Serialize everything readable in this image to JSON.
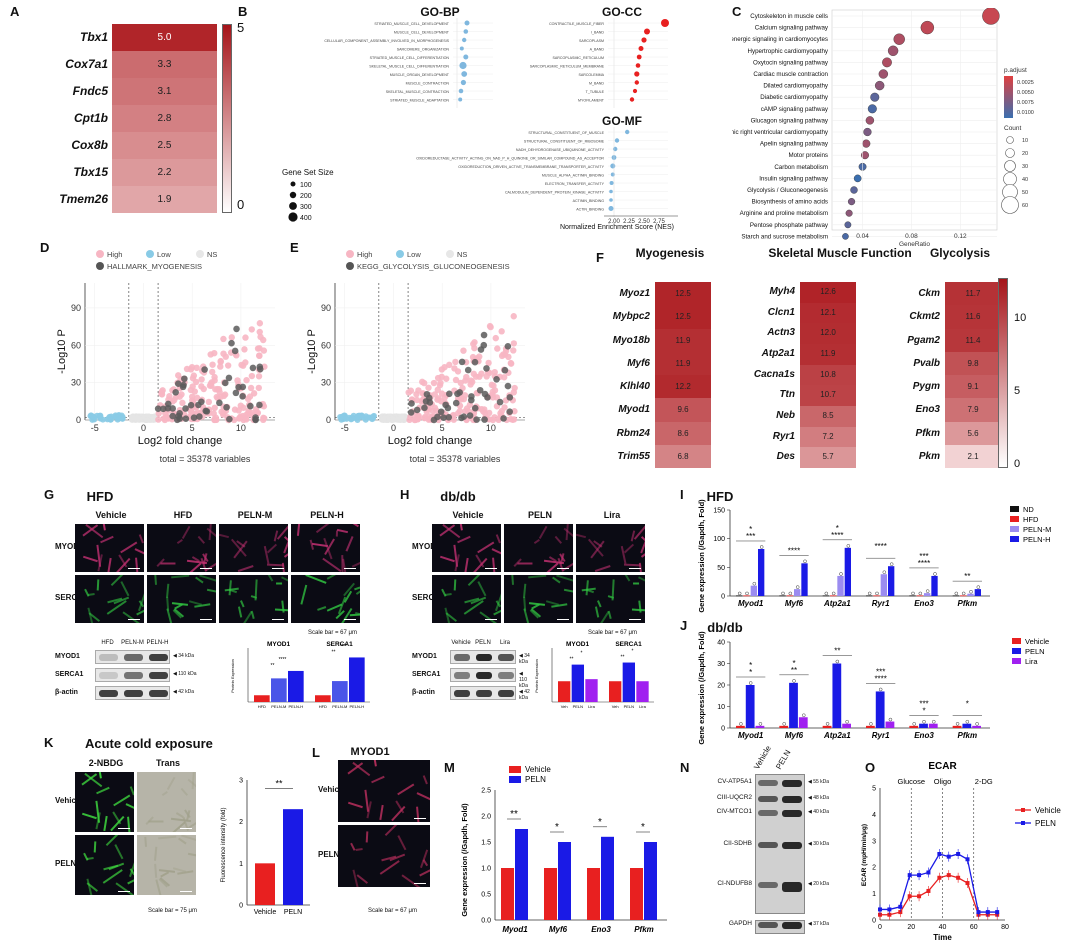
{
  "panels": [
    "A",
    "B",
    "C",
    "D",
    "E",
    "F",
    "G",
    "H",
    "I",
    "J",
    "K",
    "L",
    "M",
    "N",
    "O"
  ],
  "panelA": {
    "genes": [
      "Tbx1",
      "Cox7a1",
      "Fndc5",
      "Cpt1b",
      "Cox8b",
      "Tbx15",
      "Tmem26"
    ],
    "values": [
      5.0,
      3.3,
      3.1,
      2.8,
      2.5,
      2.2,
      1.9
    ],
    "scale_max": "5",
    "scale_min": "0"
  },
  "panelB": {
    "bp_title": "GO-BP",
    "cc_title": "GO-CC",
    "mf_title": "GO-MF",
    "bp_terms": [
      "STRIATED_MUSCLE_CELL_DEVELOPMENT",
      "MUSCLE_CELL_DEVELOPMENT",
      "CELLULAR_COMPONENT_ASSEMBLY_INVOLVED_IN_MORPHOGENESIS",
      "SARCOMERE_ORGANIZATION",
      "STRIATED_MUSCLE_CELL_DIFFERENTIATION",
      "SKELETAL_MUSCLE_CELL_DIFFERENTIATION",
      "MUSCLE_ORGAN_DEVELOPMENT",
      "MUSCLE_CONTRACTION",
      "SKELETAL_MUSCLE_CONTRACTION",
      "STRIATED_MUSCLE_ADAPTATION"
    ],
    "cc_terms": [
      "CONTRACTILE_MUSCLE_FIBER",
      "I_BAND",
      "SARCOPLASM",
      "A_BAND",
      "SARCOPLASMIC_RETICULUM",
      "SARCOPLASMIC_RETICULUM_MEMBRANE",
      "SARCOLEMMA",
      "M_BAND",
      "T_TUBULE",
      "MYOFILAMENT"
    ],
    "mf_terms": [
      "STRUCTURAL_CONSTITUENT_OF_MUSCLE",
      "STRUCTURAL_CONSTITUENT_OF_RIBOSOME",
      "NADH_DEHYDROGENASE_UBIQUINONE_ACTIVITY",
      "OXIDOREDUCTASE_ACTIVITY_ACTING_ON_NAD_P_H_QUINONE_OR_SIMILAR_COMPOUND_AS_ACCEPTOR",
      "OXIDOREDUCTION_DRIVEN_ACTIVE_TRANSMEMBRANE_TRANSPORTER_ACTIVITY",
      "MUSCLE_ALPHA_ACTININ_BINDING",
      "ELECTRON_TRANSFER_ACTIVITY",
      "CALMODULIN_DEPENDENT_PROTEIN_KINASE_ACTIVITY",
      "ACTININ_BINDING",
      "ACTIN_BINDING"
    ],
    "legend_title": "Gene Set Size",
    "legend_sizes": [
      "100",
      "200",
      "300",
      "400"
    ],
    "xlabel": "Normalized Enrichment Score (NES)",
    "xticks": [
      "2.00",
      "2.25",
      "2.50",
      "2.75"
    ]
  },
  "panelC": {
    "terms": [
      "Cytoskeleton in muscle cells",
      "Calcium signaling pathway",
      "Adrenergic signaling in cardiomyocytes",
      "Hypertrophic cardiomyopathy",
      "Oxytocin signaling pathway",
      "Cardiac muscle contraction",
      "Dilated cardiomyopathy",
      "Diabetic cardiomyopathy",
      "cAMP signaling pathway",
      "Glucagon signaling pathway",
      "Arrhythmogenic right ventricular cardiomyopathy",
      "Apelin signaling pathway",
      "Motor proteins",
      "Carbon metabolism",
      "Insulin signaling pathway",
      "Glycolysis / Gluconeogenesis",
      "Biosynthesis of amino acids",
      "Arginine and proline metabolism",
      "Pentose phosphate pathway",
      "Starch and sucrose metabolism"
    ],
    "ratios": [
      0.145,
      0.093,
      0.07,
      0.065,
      0.06,
      0.057,
      0.054,
      0.05,
      0.048,
      0.046,
      0.044,
      0.043,
      0.042,
      0.04,
      0.036,
      0.033,
      0.031,
      0.029,
      0.028,
      0.026
    ],
    "xlabel": "GeneRatio",
    "xticks": [
      "0.04",
      "0.08",
      "0.12"
    ],
    "padj_title": "p.adjust",
    "padj_ticks": [
      "0.0025",
      "0.0050",
      "0.0075",
      "0.0100"
    ],
    "count_title": "Count",
    "count_ticks": [
      "10",
      "20",
      "30",
      "40",
      "50",
      "60"
    ],
    "colors": {
      "low": "#e04040",
      "high": "#3a6fb0"
    }
  },
  "panelD": {
    "legend": [
      "High",
      "Low",
      "NS"
    ],
    "hallmark": "HALLMARK_MYOGENESIS",
    "xlabel": "Log2 fold change",
    "ylabel": "-Log10 P",
    "xticks": [
      "-5",
      "0",
      "5",
      "10"
    ],
    "yticks": [
      "0",
      "30",
      "60",
      "90"
    ],
    "total": "total = 35378 variables"
  },
  "panelE": {
    "legend": [
      "High",
      "Low",
      "NS"
    ],
    "kegg": "KEGG_GLYCOLYSIS_GLUCONEOGENESIS",
    "xlabel": "Log2 fold change",
    "ylabel": "-Log10 P",
    "xticks": [
      "-5",
      "0",
      "5",
      "10"
    ],
    "yticks": [
      "0",
      "30",
      "60",
      "90"
    ],
    "total": "total = 35378 variables"
  },
  "panelF": {
    "groups": [
      {
        "title": "Myogenesis",
        "genes": [
          "Myoz1",
          "Mybpc2",
          "Myo18b",
          "Myf6",
          "Klhl40",
          "Myod1",
          "Rbm24",
          "Trim55"
        ],
        "values": [
          12.5,
          12.5,
          11.9,
          11.9,
          12.2,
          9.6,
          8.6,
          6.8
        ]
      },
      {
        "title": "Skeletal Muscle Function",
        "genes": [
          "Myh4",
          "Clcn1",
          "Actn3",
          "Atp2a1",
          "Cacna1s",
          "Ttn",
          "Neb",
          "Ryr1",
          "Des"
        ],
        "values": [
          12.6,
          12.1,
          12.0,
          11.9,
          10.8,
          10.7,
          8.5,
          7.2,
          5.7
        ]
      },
      {
        "title": "Glycolysis",
        "genes": [
          "Ckm",
          "Ckmt2",
          "Pgam2",
          "Pvalb",
          "Pygm",
          "Eno3",
          "Pfkm",
          "Pkm"
        ],
        "values": [
          11.7,
          11.6,
          11.4,
          9.8,
          9.1,
          7.9,
          5.6,
          2.1
        ]
      }
    ],
    "scale_ticks": [
      "10",
      "5",
      "0"
    ]
  },
  "panelG": {
    "title": "HFD",
    "columns": [
      "Vehicle",
      "HFD",
      "PELN-M",
      "PELN-H"
    ],
    "rows": [
      "MYOD1",
      "SERCA1"
    ],
    "scale": "Scale bar = 67 μm",
    "wb_lanes": [
      "HFD",
      "PELN-M",
      "PELN-H"
    ],
    "wb_rows": [
      "MYOD1",
      "SERCA1",
      "β-actin"
    ],
    "wb_kda": [
      "34 kDa",
      "110 kDa",
      "42 kDa"
    ],
    "bar_titles": [
      "MYOD1",
      "SERCA1"
    ],
    "ylabel": "Protein Expression",
    "bar_x": [
      "HFD",
      "PELN-M",
      "PELN-H"
    ],
    "values": [
      [
        1.0,
        3.5,
        4.6
      ],
      [
        1.0,
        3.1,
        6.6
      ]
    ],
    "sig": [
      "**",
      "****",
      "**",
      "****"
    ]
  },
  "panelH": {
    "title": "db/db",
    "columns": [
      "Vehicle",
      "PELN",
      "Lira"
    ],
    "rows": [
      "MYOD1",
      "SERCA1"
    ],
    "scale": "Scale bar = 67 μm",
    "wb_lanes": [
      "Vehicle",
      "PELN",
      "Lira"
    ],
    "wb_rows": [
      "MYOD1",
      "SERCA1",
      "β-actin"
    ],
    "wb_kda": [
      "34 kDa",
      "110 kDa",
      "42 kDa"
    ],
    "bar_titles": [
      "MYOD1",
      "SERCA1"
    ],
    "ylabel": "Protein Expression",
    "bar_x": [
      "Veh",
      "PELN",
      "Lira"
    ],
    "values": [
      [
        1.0,
        1.8,
        1.1
      ],
      [
        1.0,
        1.9,
        1.0
      ]
    ],
    "sig": [
      "**",
      "*",
      "**",
      "*"
    ]
  },
  "panelI": {
    "title": "HFD",
    "legend": [
      "ND",
      "HFD",
      "PELN-M",
      "PELN-H"
    ],
    "colors": [
      "#111111",
      "#e82020",
      "#9b8cf0",
      "#1a1ae6"
    ],
    "genes": [
      "Myod1",
      "Myf6",
      "Atp2a1",
      "Ryr1",
      "Eno3",
      "Pfkm"
    ],
    "ylabel": "Gene expression (/Gapdh, Fold)",
    "yticks": [
      "0",
      "50",
      "100",
      "150"
    ],
    "values": [
      [
        1,
        1,
        18,
        82
      ],
      [
        1,
        1,
        12,
        57
      ],
      [
        1,
        1,
        35,
        84
      ],
      [
        1,
        1,
        38,
        52
      ],
      [
        1,
        1,
        5,
        35
      ],
      [
        1,
        1,
        4,
        12
      ]
    ],
    "sig": [
      "***",
      "*",
      "****",
      "*",
      "****",
      "****",
      "****",
      "***",
      "**"
    ]
  },
  "panelJ": {
    "title": "db/db",
    "legend": [
      "Vehicle",
      "PELN",
      "Lira"
    ],
    "colors": [
      "#e82020",
      "#1a1ae6",
      "#a020f0"
    ],
    "genes": [
      "Myod1",
      "Myf6",
      "Atp2a1",
      "Ryr1",
      "Eno3",
      "Pfkm"
    ],
    "ylabel": "Gene expression (/Gapdh, Fold)",
    "yticks": [
      "0",
      "10",
      "20",
      "30",
      "40"
    ],
    "values": [
      [
        1,
        20,
        1
      ],
      [
        1,
        21,
        5
      ],
      [
        1,
        30,
        2
      ],
      [
        1,
        17,
        3
      ],
      [
        1,
        2,
        2
      ],
      [
        1,
        2,
        1
      ]
    ],
    "sig": [
      "*",
      "*",
      "**",
      "*",
      "**",
      "***",
      "****",
      "***",
      "*",
      "*"
    ]
  },
  "panelK": {
    "title": "Acute cold exposure",
    "columns": [
      "2-NBDG",
      "Trans"
    ],
    "rows": [
      "Vehicle",
      "PELN"
    ],
    "scale": "Scale bar = 75 μm",
    "ylabel": "Fluorescence intensity (fold)",
    "bar_x": [
      "Vehicle",
      "PELN"
    ],
    "values": [
      1.0,
      2.3
    ],
    "yticks": [
      "0",
      "1",
      "2",
      "3"
    ],
    "sig": "**"
  },
  "panelL": {
    "title": "MYOD1",
    "rows": [
      "Vehicle",
      "PELN"
    ],
    "scale": "Scale bar = 67 μm"
  },
  "panelM": {
    "legend": [
      "Vehicle",
      "PELN"
    ],
    "colors": [
      "#e82020",
      "#1a1ae6"
    ],
    "genes": [
      "Myod1",
      "Myf6",
      "Eno3",
      "Pfkm"
    ],
    "values": [
      [
        1.0,
        1.75
      ],
      [
        1.0,
        1.5
      ],
      [
        1.0,
        1.6
      ],
      [
        1.0,
        1.5
      ]
    ],
    "ylabel": "Gene expression (/Gapdh, Fold)",
    "yticks": [
      "0.0",
      "0.5",
      "1.0",
      "1.5",
      "2.0",
      "2.5"
    ],
    "sig": [
      "**",
      "*",
      "*",
      "*"
    ]
  },
  "panelN": {
    "lanes": [
      "Vehicle",
      "PELN"
    ],
    "rows": [
      "CV-ATP5A1",
      "CIII-UQCR2",
      "CIV-MTCO1",
      "CII-SDHB",
      "CI-NDUFB8",
      "GAPDH"
    ],
    "kda": [
      "55 kDa",
      "48 kDa",
      "40 kDa",
      "30 kDa",
      "20 kDa",
      "37 kDa"
    ]
  },
  "panelO": {
    "title": "ECAR",
    "phases": [
      "Glucose",
      "Oligo",
      "2-DG"
    ],
    "legend": [
      "Vehicle",
      "PELN"
    ],
    "colors": [
      "#e82020",
      "#1a1ae6"
    ],
    "xlabel": "Time",
    "ylabel": "ECAR (mpH/min/μg)",
    "xticks": [
      "0",
      "20",
      "40",
      "60",
      "80"
    ],
    "yticks": [
      "0",
      "1",
      "2",
      "3",
      "4",
      "5"
    ],
    "x": [
      0,
      6,
      13,
      19,
      25,
      31,
      38,
      44,
      50,
      56,
      63,
      69,
      75
    ],
    "vehicle": [
      0.2,
      0.2,
      0.3,
      0.9,
      0.9,
      1.1,
      1.6,
      1.7,
      1.6,
      1.4,
      0.2,
      0.2,
      0.2
    ],
    "peln": [
      0.4,
      0.4,
      0.5,
      1.7,
      1.7,
      1.8,
      2.5,
      2.4,
      2.5,
      2.3,
      0.3,
      0.3,
      0.3
    ]
  }
}
